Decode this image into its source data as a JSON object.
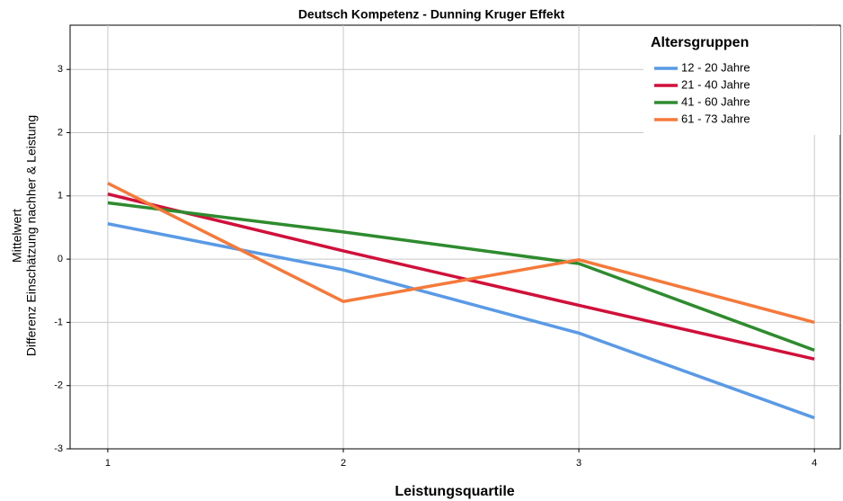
{
  "chart_data": {
    "type": "line",
    "title": "Deutsch Kompetenz - Dunning Kruger Effekt",
    "xlabel": "Leistungsquartile",
    "ylabel": [
      "Mittelwert",
      "Differenz Einschätzung nachher & Leistung"
    ],
    "x": [
      1,
      2,
      3,
      4
    ],
    "xlim": [
      0.84,
      4.11
    ],
    "xticks": [
      1,
      2,
      3,
      4
    ],
    "ylim": [
      -3,
      3.7
    ],
    "yticks": [
      -3,
      -2,
      -1,
      0,
      1,
      2,
      3
    ],
    "grid": true,
    "legend_title": "Altersgruppen",
    "legend_position": "upper right",
    "series": [
      {
        "name": "12 - 20 Jahre",
        "color": "#5a9ae6",
        "values": [
          0.56,
          -0.17,
          -1.17,
          -2.51
        ]
      },
      {
        "name": "21 - 40 Jahre",
        "color": "#d0103a",
        "values": [
          1.03,
          0.13,
          -0.73,
          -1.58
        ]
      },
      {
        "name": "41 - 60 Jahre",
        "color": "#2e8b2e",
        "values": [
          0.89,
          0.43,
          -0.07,
          -1.44
        ]
      },
      {
        "name": "61 - 73 Jahre",
        "color": "#f5793a",
        "values": [
          1.2,
          -0.67,
          -0.01,
          -1.0
        ]
      }
    ]
  }
}
